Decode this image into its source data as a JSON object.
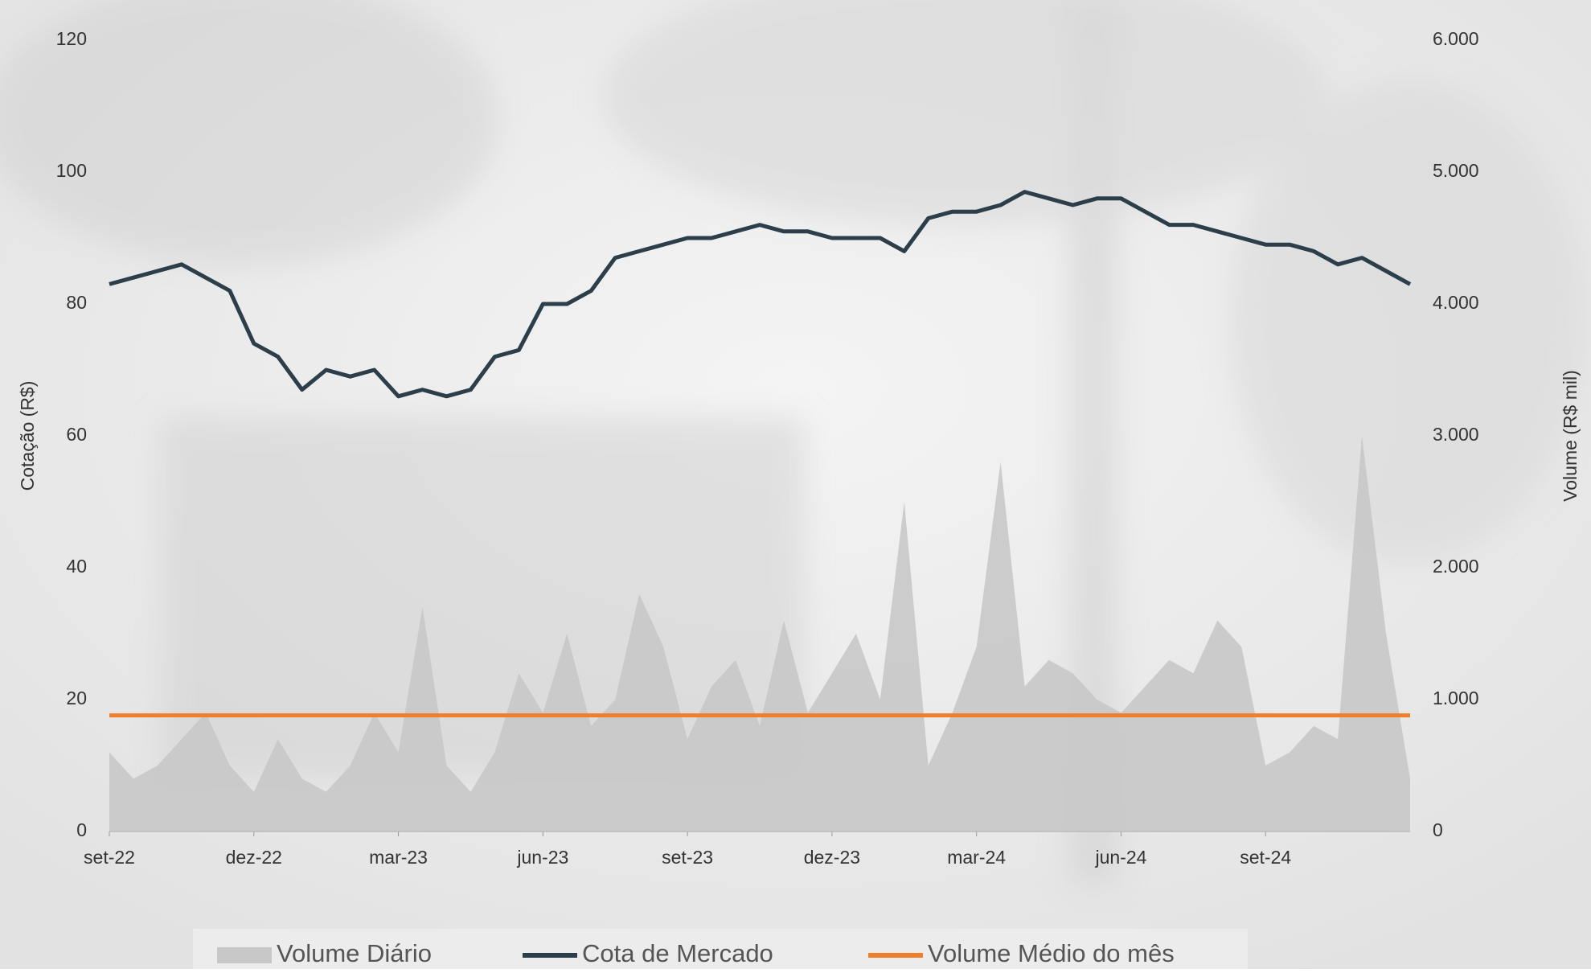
{
  "chart_data": {
    "type": "combo",
    "y_label": "Cotação (R$)",
    "y2_label": "Volume (R$ mil)",
    "categories": [
      "set-22",
      null,
      null,
      null,
      null,
      null,
      "dez-22",
      null,
      null,
      null,
      null,
      null,
      "mar-23",
      null,
      null,
      null,
      null,
      null,
      "jun-23",
      null,
      null,
      null,
      null,
      null,
      "set-23",
      null,
      null,
      null,
      null,
      null,
      "dez-23",
      null,
      null,
      null,
      null,
      null,
      "mar-24",
      null,
      null,
      null,
      null,
      null,
      "jun-24",
      null,
      null,
      null,
      null,
      null,
      "set-24",
      null,
      null,
      null,
      null,
      null,
      null
    ],
    "series": [
      {
        "name": "Volume Diário",
        "kind": "area",
        "axis": "y2",
        "color": "#c8c8c8",
        "values": [
          600,
          400,
          500,
          700,
          900,
          500,
          300,
          700,
          400,
          300,
          500,
          900,
          600,
          1700,
          500,
          300,
          600,
          1200,
          900,
          1500,
          800,
          1000,
          1800,
          1400,
          700,
          1100,
          1300,
          800,
          1600,
          900,
          1200,
          1500,
          1000,
          2500,
          500,
          900,
          1400,
          2800,
          1100,
          1300,
          1200,
          1000,
          900,
          1100,
          1300,
          1200,
          1600,
          1400,
          500,
          600,
          800,
          700,
          3000,
          1500,
          400
        ]
      },
      {
        "name": "Cota de Mercado",
        "kind": "line",
        "axis": "y",
        "color": "#2b3e4a",
        "values": [
          83,
          84,
          85,
          86,
          84,
          82,
          74,
          72,
          67,
          70,
          69,
          70,
          66,
          67,
          66,
          67,
          72,
          73,
          80,
          80,
          82,
          87,
          88,
          89,
          90,
          90,
          91,
          92,
          91,
          91,
          90,
          90,
          90,
          88,
          93,
          94,
          94,
          95,
          97,
          96,
          95,
          96,
          96,
          94,
          92,
          92,
          91,
          90,
          89,
          89,
          88,
          86,
          87,
          85,
          83
        ]
      },
      {
        "name": "Volume Médio do mês",
        "kind": "line",
        "axis": "y2",
        "color": "#f07f2a",
        "values": [
          880,
          880,
          880,
          880,
          880,
          880,
          880,
          880,
          880,
          880,
          880,
          880,
          880,
          880,
          880,
          880,
          880,
          880,
          880,
          880,
          880,
          880,
          880,
          880,
          880,
          880,
          880,
          880,
          880,
          880,
          880,
          880,
          880,
          880,
          880,
          880,
          880,
          880,
          880,
          880,
          880,
          880,
          880,
          880,
          880,
          880,
          880,
          880,
          880,
          880,
          880,
          880,
          880,
          880,
          880
        ]
      }
    ],
    "ylim": [
      0,
      120
    ],
    "yticks": [
      0,
      20,
      40,
      60,
      80,
      100,
      120
    ],
    "y2lim": [
      0,
      6000
    ],
    "y2ticks": [
      0,
      {
        "value": 1000,
        "label": "1.000"
      },
      {
        "value": 2000,
        "label": "2.000"
      },
      {
        "value": 3000,
        "label": "3.000"
      },
      {
        "value": 4000,
        "label": "4.000"
      },
      {
        "value": 5000,
        "label": "5.000"
      },
      {
        "value": 6000,
        "label": "6.000"
      }
    ]
  }
}
